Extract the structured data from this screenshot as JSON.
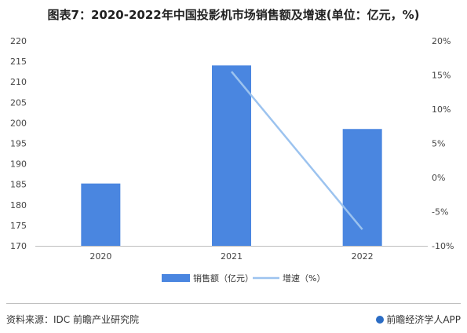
{
  "title": "图表7：2020-2022年中国投影机市场销售额及增速(单位：亿元，%)",
  "source": "资料来源：IDC 前瞻产业研究院",
  "brand": "前瞻经济学人APP",
  "chart_data": {
    "type": "bar",
    "categories": [
      "2020",
      "2021",
      "2022"
    ],
    "series": [
      {
        "name": "销售额（亿元）",
        "type": "bar",
        "axis": "left",
        "color": "#4a86e0",
        "values": [
          185.2,
          214.0,
          198.5
        ]
      },
      {
        "name": "增速（%）",
        "type": "line",
        "axis": "right",
        "color": "#9cc3ef",
        "values": [
          null,
          15.5,
          -7.6
        ]
      }
    ],
    "y_left": {
      "min": 170,
      "max": 220,
      "step": 5,
      "ticks": [
        "170",
        "175",
        "180",
        "185",
        "190",
        "195",
        "200",
        "205",
        "210",
        "215",
        "220"
      ]
    },
    "y_right": {
      "min": -10,
      "max": 20,
      "step": 5,
      "ticks": [
        "-10%",
        "-5%",
        "0%",
        "5%",
        "10%",
        "15%",
        "20%"
      ]
    },
    "grid": false,
    "legend": "bottom"
  }
}
